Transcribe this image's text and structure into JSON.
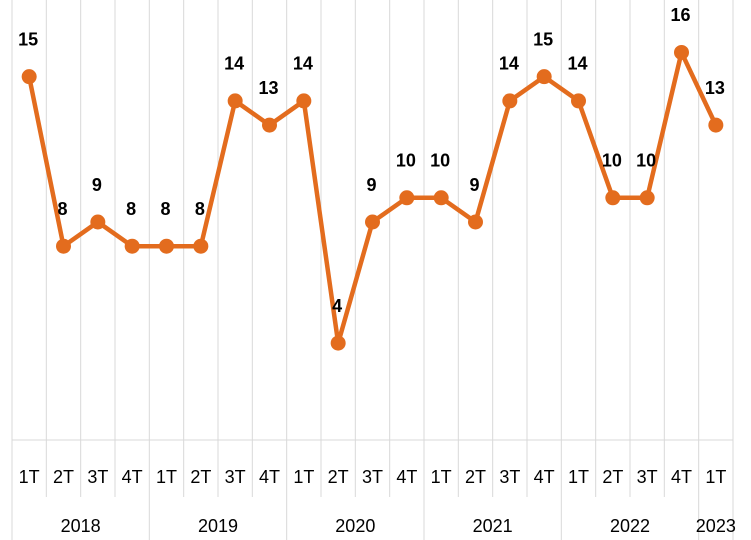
{
  "chart_data": {
    "type": "line",
    "categories": [
      "1T",
      "2T",
      "3T",
      "4T",
      "1T",
      "2T",
      "3T",
      "4T",
      "1T",
      "2T",
      "3T",
      "4T",
      "1T",
      "2T",
      "3T",
      "4T",
      "1T",
      "2T",
      "3T",
      "4T",
      "1T"
    ],
    "category_groups": [
      {
        "label": "2018",
        "count": 4
      },
      {
        "label": "2019",
        "count": 4
      },
      {
        "label": "2020",
        "count": 4
      },
      {
        "label": "2021",
        "count": 4
      },
      {
        "label": "2022",
        "count": 4
      },
      {
        "label": "2023",
        "count": 1
      }
    ],
    "series": [
      {
        "color": "#e36c1e",
        "values": [
          15,
          8,
          9,
          8,
          8,
          8,
          14,
          13,
          14,
          4,
          9,
          10,
          10,
          9,
          14,
          15,
          14,
          10,
          10,
          16,
          13
        ]
      }
    ],
    "ylim": [
      0,
      18
    ],
    "grid": true,
    "data_labels": true
  }
}
